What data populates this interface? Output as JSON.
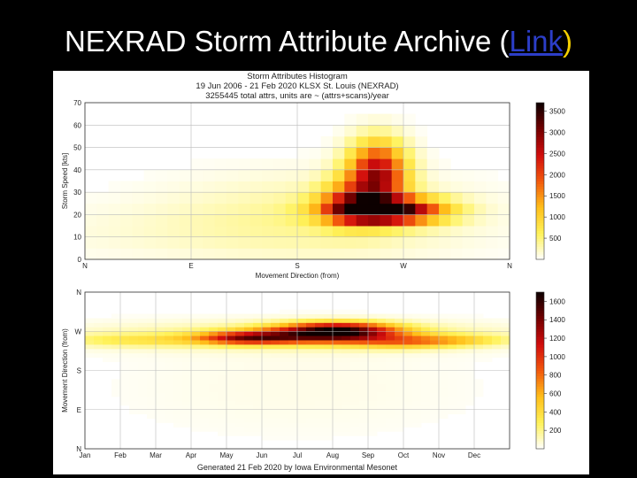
{
  "slide": {
    "title_prefix": "NEXRAD Storm Attribute Archive (",
    "link_text": "Link",
    "title_suffix": ")"
  },
  "figure": {
    "title_line1": "Storm Attributes Histogram",
    "title_line2": "19 Jun 2006 - 21 Feb 2020 KLSX St. Louis (NEXRAD)",
    "title_line3": "3255445 total attrs, units are ~ (attrs+scans)/year",
    "footer": "Generated 21 Feb 2020 by Iowa Environmental Mesonet"
  },
  "chart_data": [
    {
      "type": "heatmap",
      "xlabel": "Movement Direction (from)",
      "ylabel": "Storm Speed [kts]",
      "x_ticks": [
        "N",
        "E",
        "S",
        "W",
        "N"
      ],
      "x_tick_values": [
        0,
        90,
        180,
        270,
        360
      ],
      "y_ticks": [
        0,
        10,
        20,
        30,
        40,
        50,
        60,
        70
      ],
      "xlim": [
        0,
        360
      ],
      "ylim": [
        0,
        70
      ],
      "colorbar_ticks": [
        500,
        1000,
        1500,
        2000,
        2500,
        3000,
        3500
      ],
      "colorbar_range": [
        0,
        3700
      ],
      "bin_width_x": 10,
      "bin_width_y": 5,
      "grid": true,
      "hotspots": [
        {
          "x": 255,
          "y": 22,
          "sx": 32,
          "sy": 4,
          "v": 3600
        },
        {
          "x": 248,
          "y": 38,
          "sx": 17,
          "sy": 10,
          "v": 2700
        },
        {
          "x": 225,
          "y": 26,
          "sx": 18,
          "sy": 7,
          "v": 1300
        },
        {
          "x": 200,
          "y": 20,
          "sx": 90,
          "sy": 13,
          "v": 350
        },
        {
          "x": 90,
          "y": 12,
          "sx": 130,
          "sy": 9,
          "v": 120
        }
      ]
    },
    {
      "type": "heatmap",
      "xlabel": "",
      "ylabel": "Movement Direction (from)",
      "x_ticks": [
        "Jan",
        "Feb",
        "Mar",
        "Apr",
        "May",
        "Jun",
        "Jul",
        "Aug",
        "Sep",
        "Oct",
        "Nov",
        "Dec"
      ],
      "y_ticks": [
        "N",
        "E",
        "S",
        "W",
        "N"
      ],
      "y_tick_values": [
        0,
        90,
        180,
        270,
        360
      ],
      "xlim": [
        0,
        12
      ],
      "ylim": [
        0,
        360
      ],
      "colorbar_ticks": [
        200,
        400,
        600,
        800,
        1000,
        1200,
        1400,
        1600
      ],
      "colorbar_range": [
        0,
        1700
      ],
      "bin_width_x": 0.25,
      "bin_width_y": 10,
      "grid": true,
      "hotspots": [
        {
          "x": 7.0,
          "y": 265,
          "sx": 1.3,
          "sy": 14,
          "v": 1450
        },
        {
          "x": 7.2,
          "y": 280,
          "sx": 1.0,
          "sy": 10,
          "v": 500
        },
        {
          "x": 4.6,
          "y": 255,
          "sx": 1.0,
          "sy": 10,
          "v": 1050
        },
        {
          "x": 6.0,
          "y": 260,
          "sx": 4.5,
          "sy": 22,
          "v": 220
        },
        {
          "x": 9.0,
          "y": 245,
          "sx": 1.0,
          "sy": 10,
          "v": 450
        },
        {
          "x": 10.5,
          "y": 250,
          "sx": 1.0,
          "sy": 9,
          "v": 350
        },
        {
          "x": 1.5,
          "y": 250,
          "sx": 1.5,
          "sy": 10,
          "v": 250
        },
        {
          "x": 6.0,
          "y": 140,
          "sx": 4.0,
          "sy": 90,
          "v": 40
        }
      ]
    }
  ]
}
